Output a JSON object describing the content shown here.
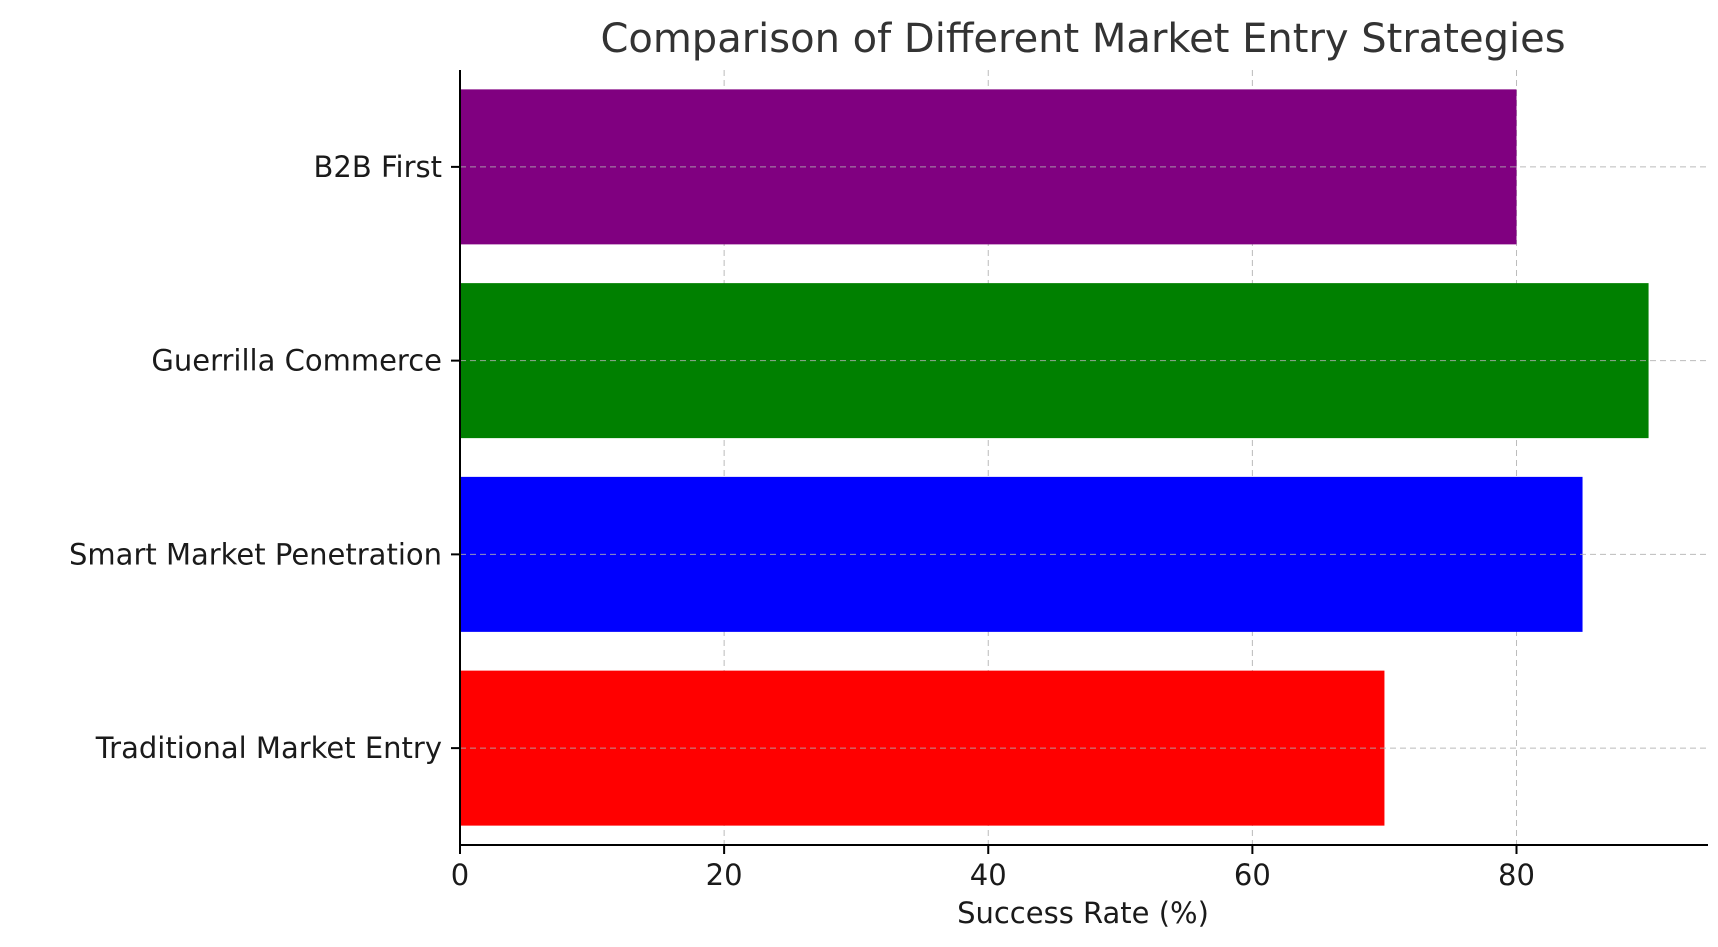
{
  "chart_data": {
    "type": "bar",
    "orientation": "horizontal",
    "title": "Comparison of Different Market Entry Strategies",
    "xlabel": "Success Rate (%)",
    "ylabel": "",
    "categories": [
      "Traditional Market Entry",
      "Smart Market Penetration",
      "Guerrilla Commerce",
      "B2B First"
    ],
    "values": [
      70,
      85,
      90,
      80
    ],
    "colors": [
      "#ff0000",
      "#0000ff",
      "#008000",
      "#800080"
    ],
    "xlim": [
      0,
      94.5
    ],
    "xticks": [
      0,
      20,
      40,
      60,
      80
    ],
    "grid": true
  }
}
